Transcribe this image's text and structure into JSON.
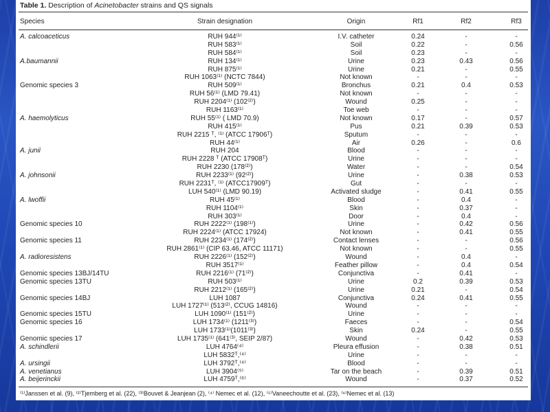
{
  "caption": {
    "label": "Table 1.",
    "title_prefix": "Description of ",
    "title_genus": "Acinetobacter",
    "title_suffix": " strains and QS signals"
  },
  "headers": {
    "species": "Species",
    "strain": "Strain designation",
    "origin": "Origin",
    "rf1": "Rf1",
    "rf2": "Rf2",
    "rf3": "Rf3"
  },
  "rows": [
    {
      "species": "A. calcoaceticus",
      "italic": true,
      "strain": "RUH 944⁽¹⁾",
      "origin": "I.V. catheter",
      "rf1": "0.24",
      "rf2": "-",
      "rf3": "-"
    },
    {
      "species": "",
      "italic": false,
      "strain": "RUH 583⁽¹⁾",
      "origin": "Soil",
      "rf1": "0.22",
      "rf2": "-",
      "rf3": "0.56"
    },
    {
      "species": "",
      "italic": false,
      "strain": "RUH 584⁽¹⁾",
      "origin": "Soil",
      "rf1": "0.23",
      "rf2": "-",
      "rf3": "-"
    },
    {
      "species": "A.baumannii",
      "italic": true,
      "strain": "RUH 134⁽¹⁾",
      "origin": "Urine",
      "rf1": "0.23",
      "rf2": "0.43",
      "rf3": "0.56"
    },
    {
      "species": "",
      "italic": false,
      "strain": "RUH 875⁽¹⁾",
      "origin": "Urine",
      "rf1": "0.21",
      "rf2": "-",
      "rf3": "0.55"
    },
    {
      "species": "",
      "italic": false,
      "strain": "RUH 1063⁽¹⁾ (NCTC 7844)",
      "origin": "Not known",
      "rf1": "-",
      "rf2": "-",
      "rf3": "-"
    },
    {
      "species": "Genomic species 3",
      "italic": false,
      "strain": "RUH 509⁽¹⁾",
      "origin": "Bronchus",
      "rf1": "0.21",
      "rf2": "0.4",
      "rf3": "0.53"
    },
    {
      "species": "",
      "italic": false,
      "strain": "RUH 56⁽¹⁾ (LMD 79.41)",
      "origin": "Not known",
      "rf1": "-",
      "rf2": "-",
      "rf3": "-"
    },
    {
      "species": "",
      "italic": false,
      "strain": "RUH 2204⁽¹⁾ (102⁽²⁾)",
      "origin": "Wound",
      "rf1": "0.25",
      "rf2": "-",
      "rf3": "-"
    },
    {
      "species": "",
      "italic": false,
      "strain": "RUH 1163⁽¹⁾",
      "origin": "Toe web",
      "rf1": "-",
      "rf2": "-",
      "rf3": "-"
    },
    {
      "species": "A. haemolyticus",
      "italic": true,
      "strain": "RUH 55⁽¹⁾ ( LMD 70.9)",
      "origin": "Not known",
      "rf1": "0.17",
      "rf2": "-",
      "rf3": "0.57"
    },
    {
      "species": "",
      "italic": false,
      "strain": "RUH 415⁽¹⁾",
      "origin": "Pus",
      "rf1": "0.21",
      "rf2": "0.39",
      "rf3": "0.53"
    },
    {
      "species": "",
      "italic": false,
      "strain": "RUH 2215 ᵀ, ⁽¹⁾ (ATCC 17906ᵀ)",
      "origin": "Sputum",
      "rf1": "-",
      "rf2": "-",
      "rf3": "-"
    },
    {
      "species": "",
      "italic": false,
      "strain": "RUH 44⁽¹⁾",
      "origin": "Air",
      "rf1": "0.26",
      "rf2": "-",
      "rf3": "0.6"
    },
    {
      "species": "A. junii",
      "italic": true,
      "strain": "RUH 204",
      "origin": "Blood",
      "rf1": "-",
      "rf2": "-",
      "rf3": "-"
    },
    {
      "species": "",
      "italic": false,
      "strain": "RUH 2228 ᵀ (ATCC 17908ᵀ)",
      "origin": "Urine",
      "rf1": "-",
      "rf2": "-",
      "rf3": "-"
    },
    {
      "species": "",
      "italic": false,
      "strain": "RUH 2230 (178⁽²⁾)",
      "origin": "Water",
      "rf1": "-",
      "rf2": "-",
      "rf3": "0.54"
    },
    {
      "species": "A. johnsonii",
      "italic": true,
      "strain": "RUH 2233⁽¹⁾ (92⁽²⁾)",
      "origin": "Urine",
      "rf1": "-",
      "rf2": "0.38",
      "rf3": "0.53"
    },
    {
      "species": "",
      "italic": false,
      "strain": "RUH 2231ᵀ, ⁽¹⁾ (ATCC17909ᵀ)",
      "origin": "Gut",
      "rf1": "-",
      "rf2": "-",
      "rf3": "-"
    },
    {
      "species": "",
      "italic": false,
      "strain": "LUH 540⁽¹⁾ (LMD 90.19)",
      "origin": "Activated sludge",
      "rf1": "-",
      "rf2": "0.41",
      "rf3": "0.55"
    },
    {
      "species": "A. lwoffii",
      "italic": true,
      "strain": "RUH 45⁽¹⁾",
      "origin": "Blood",
      "rf1": "-",
      "rf2": "0.4",
      "rf3": "-"
    },
    {
      "species": "",
      "italic": false,
      "strain": "RUH 1104⁽¹⁾",
      "origin": "Skin",
      "rf1": "-",
      "rf2": "0.37",
      "rf3": "-"
    },
    {
      "species": "",
      "italic": false,
      "strain": "RUH 303⁽¹⁾",
      "origin": "Door",
      "rf1": "-",
      "rf2": "0.4",
      "rf3": "-"
    },
    {
      "species": "Genomic species 10",
      "italic": false,
      "strain": "RUH 2222⁽¹⁾ (198⁽¹⁾)",
      "origin": "Urine",
      "rf1": "-",
      "rf2": "0.42",
      "rf3": "0.56"
    },
    {
      "species": "",
      "italic": false,
      "strain": "RUH 2224⁽¹⁾ (ATCC 17924)",
      "origin": "Not known",
      "rf1": "-",
      "rf2": "0.41",
      "rf3": "0.55"
    },
    {
      "species": "Genomic species 11",
      "italic": false,
      "strain": "RUH 2234⁽¹⁾ (174⁽²⁾)",
      "origin": "Contact lenses",
      "rf1": "-",
      "rf2": "-",
      "rf3": "0.56"
    },
    {
      "species": "",
      "italic": false,
      "strain": "RUH 2861⁽¹⁾ (CIP 63.46, ATCC 11171)",
      "origin": "Not known",
      "rf1": "-",
      "rf2": "-",
      "rf3": "0.55"
    },
    {
      "species": "A. radioresistens",
      "italic": true,
      "strain": "RUH 2226⁽¹⁾ (152⁽²⁾)",
      "origin": "Wound",
      "rf1": "-",
      "rf2": "0.4",
      "rf3": "-"
    },
    {
      "species": "",
      "italic": false,
      "strain": "RUH 3517⁽¹⁾",
      "origin": "Feather pillow",
      "rf1": "-",
      "rf2": "0.4",
      "rf3": "0.54"
    },
    {
      "species": "Genomic species 13BJ/14TU",
      "italic": false,
      "strain": "RUH 2216⁽¹⁾ (71⁽²⁾)",
      "origin": "Conjunctiva",
      "rf1": "-",
      "rf2": "0.41",
      "rf3": "-"
    },
    {
      "species": "Genomic species 13TU",
      "italic": false,
      "strain": "RUH 503⁽¹⁾",
      "origin": "Urine",
      "rf1": "0.2",
      "rf2": "0.39",
      "rf3": "0.53"
    },
    {
      "species": "",
      "italic": false,
      "strain": "RUH 2212⁽¹⁾ (165⁽²⁾)",
      "origin": "Urine",
      "rf1": "0.21",
      "rf2": "-",
      "rf3": "0.54"
    },
    {
      "species": "Genomic species 14BJ",
      "italic": false,
      "strain": "LUH 1087",
      "origin": "Conjunctiva",
      "rf1": "0.24",
      "rf2": "0.41",
      "rf3": "0.55"
    },
    {
      "species": "",
      "italic": false,
      "strain": "LUH 1727⁽¹⁾ (513⁽²⁾, CCUG 14816)",
      "origin": "Wound",
      "rf1": "-",
      "rf2": "-",
      "rf3": "-"
    },
    {
      "species": "Genomic species 15TU",
      "italic": false,
      "strain": "LUH 1090⁽¹⁾ (151⁽²⁾)",
      "origin": "Urine",
      "rf1": "-",
      "rf2": "-",
      "rf3": "-"
    },
    {
      "species": "Genomic species 16",
      "italic": false,
      "strain": "LUH 1734⁽¹⁾ (1211⁽³⁾)",
      "origin": "Faeces",
      "rf1": "-",
      "rf2": "-",
      "rf3": "0.54"
    },
    {
      "species": "",
      "italic": false,
      "strain": "LUH 1733⁽¹⁾(1011⁽³⁾)",
      "origin": "Skin",
      "rf1": "0.24",
      "rf2": "-",
      "rf3": "0.55"
    },
    {
      "species": "Genomic species 17",
      "italic": false,
      "strain": "LUH 1735⁽¹⁾ (641⁽³⁾, SEIP 2/87)",
      "origin": "Wound",
      "rf1": "-",
      "rf2": "0.42",
      "rf3": "0.53"
    },
    {
      "species": "A. schindlerii",
      "italic": true,
      "strain": "LUH 4764⁽⁴⁾",
      "origin": "Pleura effusion",
      "rf1": "-",
      "rf2": "0.38",
      "rf3": "0.51"
    },
    {
      "species": "",
      "italic": false,
      "strain": "LUH 5832ᵀ,⁽⁴⁾",
      "origin": "Urine",
      "rf1": "-",
      "rf2": "-",
      "rf3": "-"
    },
    {
      "species": "A. ursingii",
      "italic": true,
      "strain": "LUH 3792ᵀ,⁽⁴⁾",
      "origin": "Blood",
      "rf1": "-",
      "rf2": "-",
      "rf3": "-"
    },
    {
      "species": "A. venetianus",
      "italic": true,
      "strain": "LUH 3904⁽⁵⁾",
      "origin": "Tar on the beach",
      "rf1": "-",
      "rf2": "0.39",
      "rf3": "0.51"
    },
    {
      "species": "A. beijerinckii",
      "italic": true,
      "strain": "LUH 4759ᵀ,⁽⁶⁾",
      "origin": "Wound",
      "rf1": "-",
      "rf2": "0.37",
      "rf3": "0.52"
    }
  ],
  "footnote": "⁽¹⁾Janssen et al. (9), ⁽²⁾Tjemberg et al. (22), ⁽³⁾Bouvet & Jeanjean (2), ⁽⁴⁾ Nemec et al. (12), ⁽⁵⁾Vaneechoutte et al. (23), ⁽⁶⁾Nemec et al. (13)"
}
